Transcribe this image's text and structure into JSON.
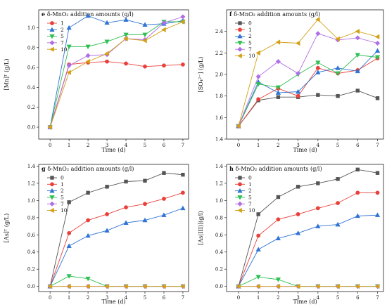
{
  "chart_data": [
    {
      "type": "line",
      "panel_letter": "e",
      "title": "δ-MnO₂ addition amounts (g/l)",
      "xlabel": "Time (d)",
      "ylabel": "[Mn]ᵀ (g/L)",
      "xlim": [
        -0.6,
        7.3
      ],
      "ylim": [
        -0.12,
        1.18
      ],
      "xticks": [
        0,
        1,
        2,
        3,
        4,
        5,
        6,
        7
      ],
      "yticks": [
        0.0,
        0.2,
        0.4,
        0.6,
        0.8,
        1.0
      ],
      "ytick_labels": [
        "0.0",
        "0.2",
        "0.4",
        "0.6",
        "0.8",
        "1.0"
      ],
      "legend_position": "top-left",
      "x": [
        0,
        1,
        2,
        3,
        4,
        5,
        6,
        7
      ],
      "series": [
        {
          "name": "1",
          "color": "#e8413b",
          "marker": "circle",
          "values": [
            0.0,
            0.63,
            0.65,
            0.66,
            0.64,
            0.61,
            0.62,
            0.63
          ]
        },
        {
          "name": "2",
          "color": "#2f73d4",
          "marker": "triangle-up",
          "values": [
            0.0,
            1.0,
            1.12,
            1.05,
            1.08,
            1.03,
            1.04,
            1.07
          ]
        },
        {
          "name": "5",
          "color": "#2fbf54",
          "marker": "triangle-down",
          "values": [
            0.0,
            0.81,
            0.81,
            0.86,
            0.93,
            0.93,
            1.06,
            1.06
          ]
        },
        {
          "name": "7",
          "color": "#b06ee6",
          "marker": "diamond",
          "values": [
            0.0,
            0.62,
            0.72,
            0.73,
            0.89,
            0.88,
            1.05,
            1.11
          ]
        },
        {
          "name": "10",
          "color": "#d4a017",
          "marker": "triangle-left",
          "values": [
            0.0,
            0.55,
            0.66,
            0.74,
            0.89,
            0.87,
            0.98,
            1.06
          ]
        }
      ]
    },
    {
      "type": "line",
      "panel_letter": "f",
      "title": "δ-MnO₂ addition amounts (g/l)",
      "xlabel": "Time (d)",
      "ylabel": "[SO₄²⁻] (g/L)",
      "xlim": [
        -0.6,
        7.3
      ],
      "ylim": [
        1.4,
        2.6
      ],
      "xticks": [
        0,
        1,
        2,
        3,
        4,
        5,
        6,
        7
      ],
      "yticks": [
        1.4,
        1.6,
        1.8,
        2.0,
        2.2,
        2.4
      ],
      "ytick_labels": [
        "1.4",
        "1.6",
        "1.8",
        "2.0",
        "2.2",
        "2.4"
      ],
      "legend_position": "top-left",
      "x": [
        0,
        1,
        2,
        3,
        4,
        5,
        6,
        7
      ],
      "series": [
        {
          "name": "0",
          "color": "#555555",
          "marker": "square",
          "values": [
            1.52,
            1.76,
            1.79,
            1.79,
            1.81,
            1.8,
            1.85,
            1.78
          ]
        },
        {
          "name": "1",
          "color": "#e8413b",
          "marker": "circle",
          "values": [
            1.52,
            1.77,
            1.87,
            1.8,
            2.06,
            2.01,
            2.04,
            2.15
          ]
        },
        {
          "name": "2",
          "color": "#2f73d4",
          "marker": "triangle-up",
          "values": [
            1.52,
            1.93,
            1.83,
            1.84,
            2.02,
            2.06,
            2.03,
            2.22
          ]
        },
        {
          "name": "5",
          "color": "#2fbf54",
          "marker": "triangle-down",
          "values": [
            1.52,
            1.91,
            1.88,
            2.0,
            2.11,
            2.01,
            2.18,
            2.16
          ]
        },
        {
          "name": "7",
          "color": "#b06ee6",
          "marker": "diamond",
          "values": [
            1.52,
            1.98,
            2.12,
            2.01,
            2.38,
            2.32,
            2.34,
            2.29
          ]
        },
        {
          "name": "10",
          "color": "#d4a017",
          "marker": "triangle-left",
          "values": [
            1.52,
            2.2,
            2.3,
            2.29,
            2.51,
            2.33,
            2.4,
            2.35
          ]
        }
      ]
    },
    {
      "type": "line",
      "panel_letter": "g",
      "title": "δ-MnO₂ addition amounts (g/l)",
      "xlabel": "Time (d)",
      "ylabel": "[As]ᵀ (g/L)",
      "xlim": [
        -0.6,
        7.3
      ],
      "ylim": [
        -0.06,
        1.42
      ],
      "xticks": [
        0,
        1,
        2,
        3,
        4,
        5,
        6,
        7
      ],
      "yticks": [
        0.0,
        0.2,
        0.4,
        0.6,
        0.8,
        1.0,
        1.2,
        1.4
      ],
      "ytick_labels": [
        "0.0",
        "0.2",
        "0.4",
        "0.6",
        "0.8",
        "1.0",
        "1.2",
        "1.4"
      ],
      "legend_position": "top-left",
      "x": [
        0,
        1,
        2,
        3,
        4,
        5,
        6,
        7
      ],
      "series": [
        {
          "name": "0",
          "color": "#555555",
          "marker": "square",
          "values": [
            0.0,
            0.98,
            1.09,
            1.16,
            1.22,
            1.23,
            1.32,
            1.3
          ]
        },
        {
          "name": "1",
          "color": "#e8413b",
          "marker": "circle",
          "values": [
            0.0,
            0.62,
            0.77,
            0.84,
            0.92,
            0.96,
            1.02,
            1.09
          ]
        },
        {
          "name": "2",
          "color": "#2f73d4",
          "marker": "triangle-up",
          "values": [
            0.0,
            0.47,
            0.59,
            0.65,
            0.74,
            0.77,
            0.83,
            0.91
          ]
        },
        {
          "name": "5",
          "color": "#2fbf54",
          "marker": "triangle-down",
          "values": [
            0.0,
            0.12,
            0.09,
            0.0,
            0.0,
            0.0,
            0.0,
            0.0
          ]
        },
        {
          "name": "7",
          "color": "#b06ee6",
          "marker": "diamond",
          "values": [
            0.0,
            0.0,
            0.0,
            0.0,
            0.0,
            0.0,
            0.0,
            0.0
          ]
        },
        {
          "name": "10",
          "color": "#d4a017",
          "marker": "triangle-left",
          "values": [
            0.0,
            0.0,
            0.0,
            0.0,
            0.0,
            0.0,
            0.0,
            0.0
          ]
        }
      ]
    },
    {
      "type": "line",
      "panel_letter": "h",
      "title": "δ-MnO₂ addition amounts (g/l)",
      "xlabel": "Time (d)",
      "ylabel": "[As(III)](g/l)",
      "xlim": [
        -0.6,
        7.3
      ],
      "ylim": [
        -0.06,
        1.42
      ],
      "xticks": [
        0,
        1,
        2,
        3,
        4,
        5,
        6,
        7
      ],
      "yticks": [
        0.0,
        0.2,
        0.4,
        0.6,
        0.8,
        1.0,
        1.2,
        1.4
      ],
      "ytick_labels": [
        "0.0",
        "0.2",
        "0.4",
        "0.6",
        "0.8",
        "1.0",
        "1.2",
        "1.4"
      ],
      "legend_position": "top-left",
      "x": [
        0,
        1,
        2,
        3,
        4,
        5,
        6,
        7
      ],
      "series": [
        {
          "name": "0",
          "color": "#555555",
          "marker": "square",
          "values": [
            0.0,
            0.84,
            1.04,
            1.16,
            1.2,
            1.25,
            1.36,
            1.32
          ]
        },
        {
          "name": "1",
          "color": "#e8413b",
          "marker": "circle",
          "values": [
            0.0,
            0.59,
            0.78,
            0.84,
            0.91,
            0.97,
            1.09,
            1.09
          ]
        },
        {
          "name": "2",
          "color": "#2f73d4",
          "marker": "triangle-up",
          "values": [
            0.0,
            0.43,
            0.56,
            0.62,
            0.7,
            0.72,
            0.82,
            0.83
          ]
        },
        {
          "name": "5",
          "color": "#2fbf54",
          "marker": "triangle-down",
          "values": [
            0.0,
            0.11,
            0.08,
            0.0,
            0.0,
            0.0,
            0.0,
            0.0
          ]
        },
        {
          "name": "7",
          "color": "#b06ee6",
          "marker": "diamond",
          "values": [
            0.0,
            0.0,
            0.0,
            0.0,
            0.0,
            0.0,
            0.0,
            0.0
          ]
        },
        {
          "name": "10",
          "color": "#d4a017",
          "marker": "triangle-left",
          "values": [
            0.0,
            0.0,
            0.0,
            0.0,
            0.0,
            0.0,
            0.0,
            0.0
          ]
        }
      ]
    }
  ]
}
